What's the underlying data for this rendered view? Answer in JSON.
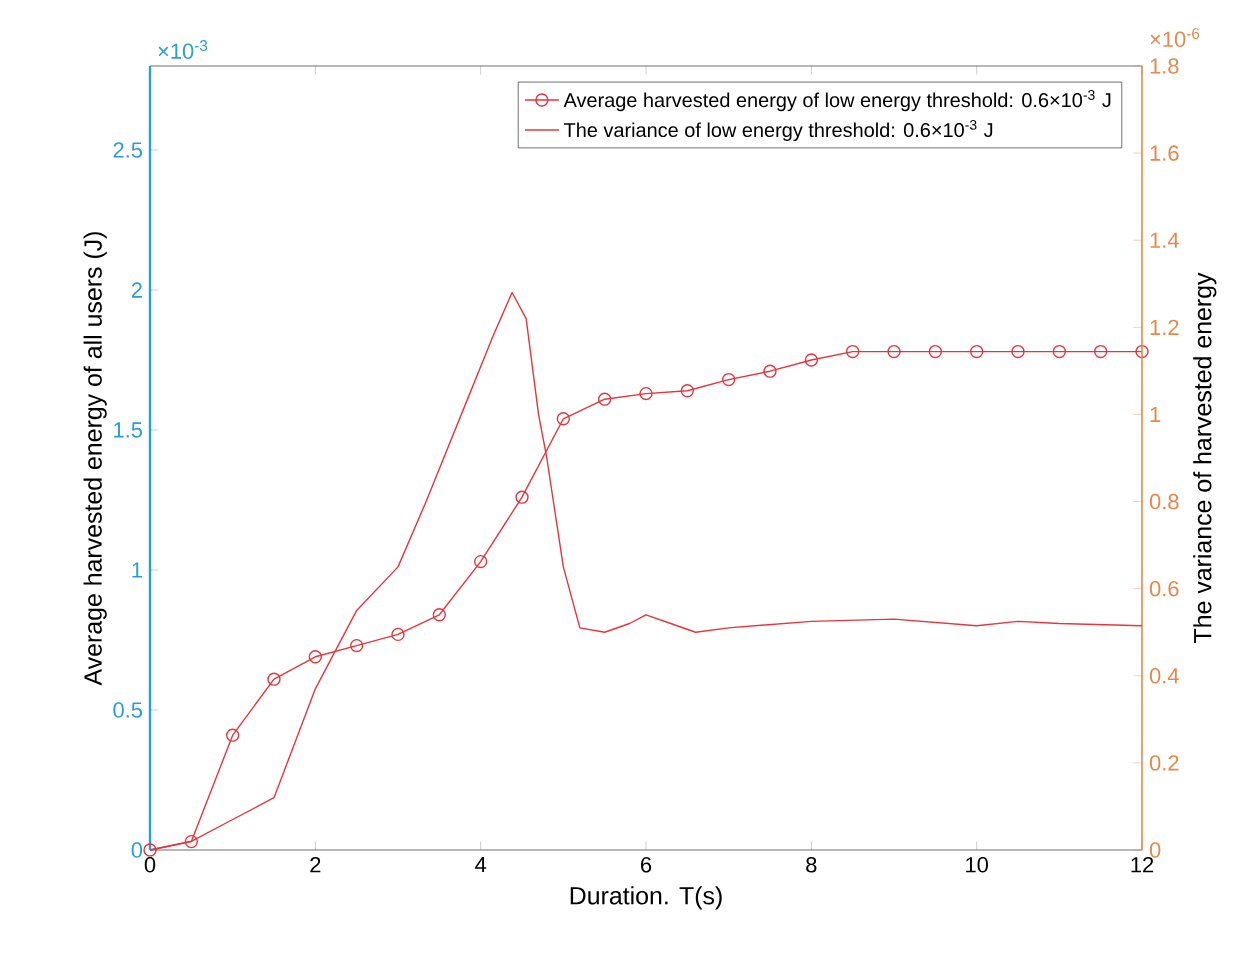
{
  "chart_data": {
    "type": "line",
    "xlabel": "Duration. T(s)",
    "ylabel": "Average harvested energy of all users (J)",
    "y2label": "The variance of harvested energy",
    "xlim": [
      0,
      12
    ],
    "xticks": [
      0,
      2,
      4,
      6,
      8,
      10,
      12
    ],
    "ylim": [
      0,
      2.8
    ],
    "yticks": [
      0,
      0.5,
      1,
      1.5,
      2,
      2.5
    ],
    "y2lim": [
      0,
      1.8
    ],
    "y2ticks": [
      0,
      0.2,
      0.4,
      0.6,
      0.8,
      1,
      1.2,
      1.4,
      1.6,
      1.8
    ],
    "annotations": [
      "×10$^{-3}$",
      "×10$^{-6}$"
    ],
    "legend": "top right",
    "grid": false,
    "line_style": "solid",
    "series": [
      {
        "name": "Average harvested energy of low energy threshold: 0.6×10$^{-3}$ J",
        "color": "#e8343c",
        "marker": "circle",
        "x": [
          0,
          0.5,
          1,
          1.5,
          2,
          2.5,
          3,
          3.5,
          4,
          4.5,
          5,
          5.5,
          6,
          6.5,
          7,
          7.5,
          8,
          8.5,
          9,
          9.5,
          10,
          10.5,
          11,
          11.5,
          12
        ],
        "values": [
          0,
          0.03,
          0.41,
          0.61,
          0.69,
          0.73,
          0.77,
          0.84,
          1.03,
          1.26,
          1.54,
          1.61,
          1.63,
          1.64,
          1.68,
          1.71,
          1.75,
          1.78,
          1.78,
          1.78,
          1.78,
          1.78,
          1.78,
          1.78,
          1.78
        ]
      },
      {
        "name": "The variance of low energy threshold: 0.6×10$^{-3}$ J",
        "color": "#e8343c",
        "marker": "none",
        "axis": "y2",
        "x": [
          0,
          0.5,
          1,
          1.5,
          2,
          2.5,
          3,
          3.34,
          3.83,
          4.15,
          4.38,
          4.55,
          4.7,
          4.8,
          5.0,
          5.2,
          5.5,
          5.8,
          6,
          6.3,
          6.6,
          7,
          8,
          9,
          10,
          10.5,
          11,
          12
        ],
        "values": [
          0,
          0.02,
          0.07,
          0.12,
          0.37,
          0.55,
          0.65,
          0.8,
          1.03,
          1.18,
          1.28,
          1.22,
          1.0,
          0.9,
          0.65,
          0.51,
          0.5,
          0.52,
          0.54,
          0.52,
          0.5,
          0.51,
          0.525,
          0.53,
          0.515,
          0.525,
          0.52,
          0.515
        ]
      }
    ]
  }
}
